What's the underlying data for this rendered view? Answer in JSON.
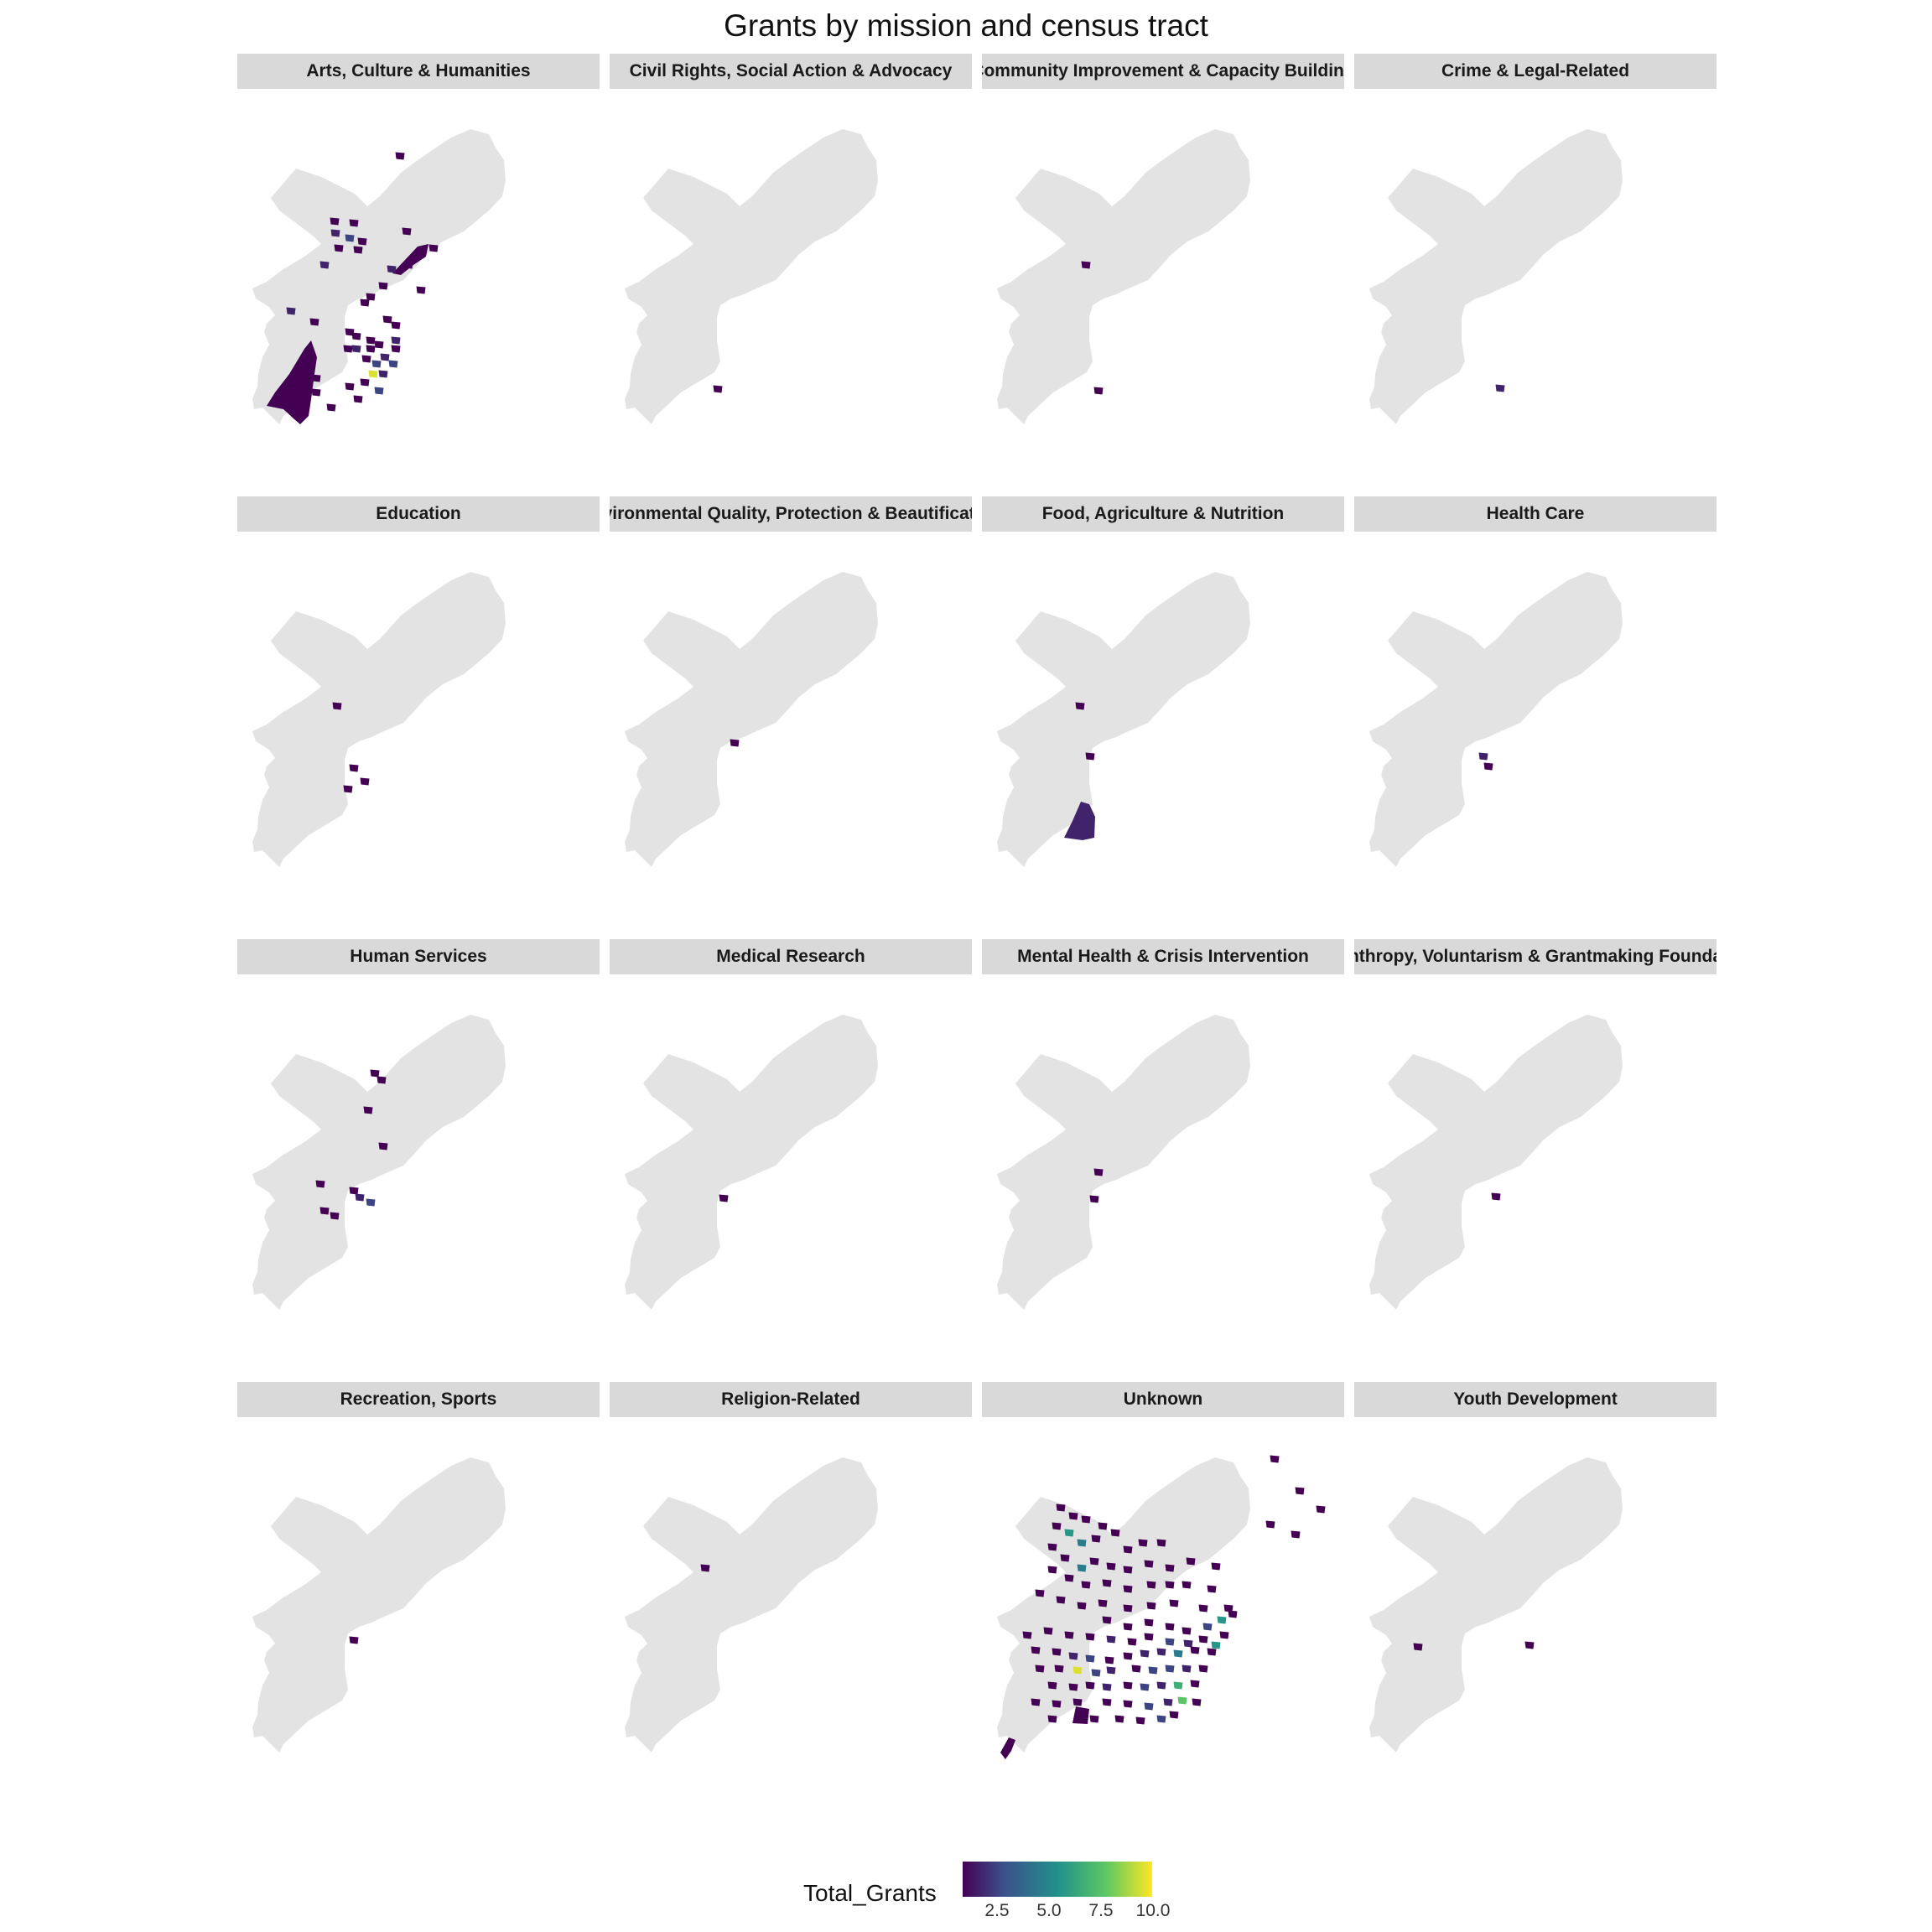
{
  "title": "Grants by mission and census tract",
  "colors": {
    "city_fill": "#e3e3e3",
    "strip_bg": "#d9d9d9",
    "scale": [
      "#440154",
      "#3b528b",
      "#21908c",
      "#5dc863",
      "#fde725"
    ]
  },
  "legend": {
    "title": "Total_Grants",
    "ticks": [
      "2.5",
      "5.0",
      "7.5",
      "10.0"
    ],
    "range": [
      1,
      10.5
    ]
  },
  "panels": [
    {
      "label": "Arts, Culture & Humanities",
      "tracts": [
        [
          170,
          70,
          1
        ],
        [
          92,
          148,
          1
        ],
        [
          115,
          150,
          1
        ],
        [
          93,
          162,
          2
        ],
        [
          110,
          168,
          3
        ],
        [
          125,
          172,
          1
        ],
        [
          97,
          180,
          1
        ],
        [
          120,
          182,
          1
        ],
        [
          80,
          200,
          2
        ],
        [
          178,
          160,
          1
        ],
        [
          180,
          200,
          1
        ],
        [
          160,
          205,
          2
        ],
        [
          150,
          225,
          1
        ],
        [
          128,
          245,
          1
        ],
        [
          135,
          238,
          1
        ],
        [
          40,
          255,
          2
        ],
        [
          68,
          268,
          1
        ],
        [
          110,
          280,
          1
        ],
        [
          118,
          285,
          1
        ],
        [
          155,
          265,
          1
        ],
        [
          165,
          272,
          1
        ],
        [
          135,
          300,
          1
        ],
        [
          145,
          295,
          1
        ],
        [
          108,
          300,
          1
        ],
        [
          118,
          300,
          2
        ],
        [
          130,
          312,
          1
        ],
        [
          142,
          318,
          3
        ],
        [
          152,
          310,
          2
        ],
        [
          165,
          300,
          1
        ],
        [
          162,
          318,
          3
        ],
        [
          150,
          330,
          2
        ],
        [
          70,
          335,
          1
        ],
        [
          110,
          345,
          1
        ],
        [
          128,
          340,
          1
        ],
        [
          120,
          360,
          1
        ],
        [
          70,
          352,
          1
        ],
        [
          88,
          370,
          1
        ],
        [
          210,
          180,
          1
        ],
        [
          195,
          230,
          1
        ],
        [
          145,
          350,
          3
        ],
        [
          138,
          330,
          10
        ],
        [
          165,
          290,
          2
        ],
        [
          135,
          290,
          1
        ]
      ],
      "shapes": [
        "southwest",
        "northeast-strip"
      ]
    },
    {
      "label": "Civil Rights, Social Action & Advocacy",
      "tracts": [
        [
          105,
          348,
          1
        ]
      ]
    },
    {
      "label": "Community Improvement & Capacity Building",
      "tracts": [
        [
          100,
          200,
          1
        ],
        [
          115,
          350,
          1
        ]
      ]
    },
    {
      "label": "Crime & Legal-Related",
      "tracts": [
        [
          150,
          347,
          2
        ]
      ]
    },
    {
      "label": "Education",
      "tracts": [
        [
          95,
          198,
          1
        ],
        [
          115,
          272,
          1
        ],
        [
          128,
          288,
          1
        ],
        [
          108,
          297,
          1
        ]
      ]
    },
    {
      "label": "Environmental Quality, Protection & Beautification",
      "tracts": [
        [
          125,
          242,
          1
        ]
      ]
    },
    {
      "label": "Food, Agriculture & Nutrition",
      "tracts": [
        [
          93,
          198,
          1
        ],
        [
          105,
          258,
          1
        ]
      ],
      "shapes": [
        "southeast-big"
      ]
    },
    {
      "label": "Health Care",
      "tracts": [
        [
          130,
          258,
          2
        ],
        [
          136,
          270,
          1
        ]
      ]
    },
    {
      "label": "Human Services",
      "tracts": [
        [
          140,
          108,
          1
        ],
        [
          148,
          116,
          1
        ],
        [
          132,
          152,
          1
        ],
        [
          150,
          195,
          1
        ],
        [
          75,
          240,
          1
        ],
        [
          115,
          248,
          1
        ],
        [
          122,
          256,
          2
        ],
        [
          135,
          262,
          3
        ],
        [
          80,
          272,
          1
        ],
        [
          92,
          278,
          1
        ]
      ]
    },
    {
      "label": "Medical Research",
      "tracts": [
        [
          112,
          257,
          1
        ]
      ]
    },
    {
      "label": "Mental Health & Crisis Intervention",
      "tracts": [
        [
          115,
          226,
          1
        ],
        [
          110,
          258,
          1
        ]
      ]
    },
    {
      "label": "Philanthropy, Voluntarism & Grantmaking Foundations",
      "tracts": [
        [
          145,
          255,
          1
        ]
      ]
    },
    {
      "label": "Recreation, Sports",
      "tracts": [
        [
          115,
          256,
          1
        ]
      ]
    },
    {
      "label": "Religion-Related",
      "tracts": [
        [
          90,
          170,
          1
        ]
      ]
    },
    {
      "label": "Unknown",
      "tracts": [
        [
          325,
          40,
          1
        ],
        [
          355,
          78,
          1
        ],
        [
          380,
          100,
          1
        ],
        [
          320,
          118,
          1
        ],
        [
          350,
          130,
          1
        ],
        [
          70,
          98,
          1
        ],
        [
          85,
          108,
          1
        ],
        [
          100,
          112,
          1
        ],
        [
          120,
          120,
          1
        ],
        [
          135,
          128,
          1
        ],
        [
          65,
          120,
          1
        ],
        [
          80,
          128,
          6
        ],
        [
          95,
          140,
          5
        ],
        [
          112,
          135,
          1
        ],
        [
          150,
          148,
          1
        ],
        [
          168,
          140,
          1
        ],
        [
          190,
          140,
          1
        ],
        [
          60,
          145,
          1
        ],
        [
          75,
          158,
          1
        ],
        [
          95,
          170,
          5
        ],
        [
          110,
          162,
          1
        ],
        [
          130,
          168,
          1
        ],
        [
          150,
          172,
          1
        ],
        [
          175,
          165,
          1
        ],
        [
          200,
          170,
          1
        ],
        [
          225,
          162,
          1
        ],
        [
          255,
          168,
          1
        ],
        [
          60,
          172,
          1
        ],
        [
          80,
          182,
          1
        ],
        [
          100,
          190,
          1
        ],
        [
          125,
          188,
          1
        ],
        [
          150,
          195,
          1
        ],
        [
          178,
          190,
          1
        ],
        [
          200,
          190,
          1
        ],
        [
          220,
          190,
          1
        ],
        [
          250,
          195,
          1
        ],
        [
          45,
          200,
          1
        ],
        [
          70,
          208,
          1
        ],
        [
          95,
          215,
          1
        ],
        [
          120,
          212,
          1
        ],
        [
          150,
          218,
          1
        ],
        [
          178,
          215,
          1
        ],
        [
          205,
          212,
          1
        ],
        [
          240,
          218,
          1
        ],
        [
          270,
          218,
          1
        ],
        [
          125,
          232,
          1
        ],
        [
          150,
          240,
          1
        ],
        [
          175,
          235,
          1
        ],
        [
          200,
          240,
          1
        ],
        [
          220,
          245,
          1
        ],
        [
          245,
          240,
          3
        ],
        [
          262,
          232,
          6
        ],
        [
          275,
          225,
          1
        ],
        [
          30,
          250,
          1
        ],
        [
          55,
          245,
          1
        ],
        [
          80,
          250,
          1
        ],
        [
          105,
          252,
          1
        ],
        [
          130,
          255,
          2
        ],
        [
          155,
          258,
          1
        ],
        [
          175,
          252,
          1
        ],
        [
          200,
          258,
          3
        ],
        [
          222,
          260,
          2
        ],
        [
          240,
          255,
          1
        ],
        [
          255,
          262,
          6
        ],
        [
          265,
          250,
          1
        ],
        [
          40,
          268,
          1
        ],
        [
          65,
          270,
          1
        ],
        [
          85,
          275,
          2
        ],
        [
          105,
          278,
          3
        ],
        [
          128,
          280,
          1
        ],
        [
          150,
          275,
          1
        ],
        [
          170,
          272,
          2
        ],
        [
          190,
          270,
          2
        ],
        [
          210,
          272,
          5
        ],
        [
          230,
          268,
          1
        ],
        [
          250,
          270,
          1
        ],
        [
          45,
          290,
          1
        ],
        [
          68,
          290,
          1
        ],
        [
          90,
          292,
          10
        ],
        [
          112,
          295,
          3
        ],
        [
          130,
          292,
          2
        ],
        [
          160,
          290,
          1
        ],
        [
          180,
          292,
          3
        ],
        [
          200,
          290,
          3
        ],
        [
          220,
          290,
          2
        ],
        [
          240,
          290,
          1
        ],
        [
          60,
          310,
          1
        ],
        [
          85,
          312,
          1
        ],
        [
          105,
          310,
          1
        ],
        [
          125,
          312,
          2
        ],
        [
          150,
          310,
          1
        ],
        [
          170,
          312,
          3
        ],
        [
          190,
          310,
          2
        ],
        [
          210,
          310,
          7
        ],
        [
          230,
          308,
          1
        ],
        [
          40,
          330,
          1
        ],
        [
          65,
          332,
          1
        ],
        [
          90,
          330,
          1
        ],
        [
          125,
          330,
          1
        ],
        [
          150,
          332,
          1
        ],
        [
          175,
          335,
          3
        ],
        [
          198,
          330,
          2
        ],
        [
          215,
          328,
          8
        ],
        [
          232,
          330,
          1
        ],
        [
          60,
          350,
          1
        ],
        [
          110,
          350,
          1
        ],
        [
          140,
          350,
          1
        ],
        [
          165,
          352,
          1
        ],
        [
          190,
          350,
          3
        ],
        [
          205,
          345,
          1
        ]
      ],
      "shapes": [
        "southwest-tail",
        "south-block"
      ]
    },
    {
      "label": "Youth Development",
      "tracts": [
        [
          52,
          264,
          1
        ],
        [
          185,
          262,
          1
        ]
      ]
    }
  ]
}
